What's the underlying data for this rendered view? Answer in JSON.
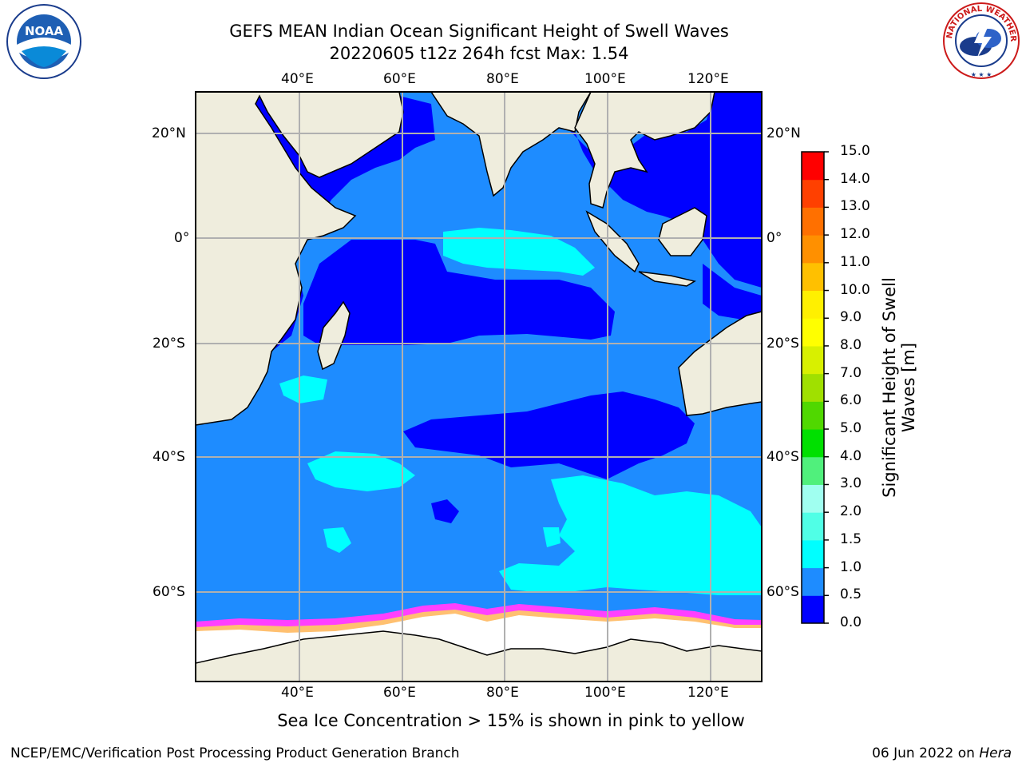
{
  "header": {
    "title_line1": "GEFS MEAN Indian Ocean Significant Height of Swell Waves",
    "title_line2": "20220605 t12z 264h fcst   Max: 1.54"
  },
  "logos": {
    "noaa_label": "NOAA",
    "nws_label": "NATIONAL WEATHER SERVICE"
  },
  "axes": {
    "top_lon_labels": [
      "40°E",
      "60°E",
      "80°E",
      "100°E",
      "120°E"
    ],
    "bottom_lon_labels": [
      "40°E",
      "60°E",
      "80°E",
      "100°E",
      "120°E"
    ],
    "left_lat_labels": [
      "20°N",
      "0°",
      "20°S",
      "40°S",
      "60°S"
    ],
    "right_lat_labels": [
      "20°N",
      "0°",
      "20°S",
      "40°S",
      "60°S"
    ]
  },
  "colorbar": {
    "label": "Significant Height of Swell Waves [m]",
    "label_line1": "Significant Height of Swell",
    "label_line2": "Waves [m]",
    "ticks": [
      "0.0",
      "0.5",
      "1.0",
      "1.5",
      "2.0",
      "3.0",
      "4.0",
      "5.0",
      "6.0",
      "7.0",
      "8.0",
      "9.0",
      "10.0",
      "11.0",
      "12.0",
      "13.0",
      "14.0",
      "15.0"
    ],
    "colors": [
      "#0000ff",
      "#1e8cff",
      "#00ffff",
      "#50ffe6",
      "#a0fff0",
      "#50f07c",
      "#00e000",
      "#50d800",
      "#a0e000",
      "#d8f000",
      "#ffff00",
      "#fff000",
      "#ffc000",
      "#ff9000",
      "#ff7000",
      "#ff4000",
      "#ff0000"
    ]
  },
  "map_colors": {
    "land": "#efeddd",
    "ice": "#ffffff",
    "ice_edge": [
      "#ff40ff",
      "#ff90b0",
      "#ffc070"
    ],
    "grid": "#b0b0b0"
  },
  "caption": "Sea Ice Concentration > 15% is shown in pink to yellow",
  "footer": {
    "left": "NCEP/EMC/Verification Post Processing Product Generation Branch",
    "right_date": "06 Jun 2022 on",
    "right_machine": "Hera"
  }
}
